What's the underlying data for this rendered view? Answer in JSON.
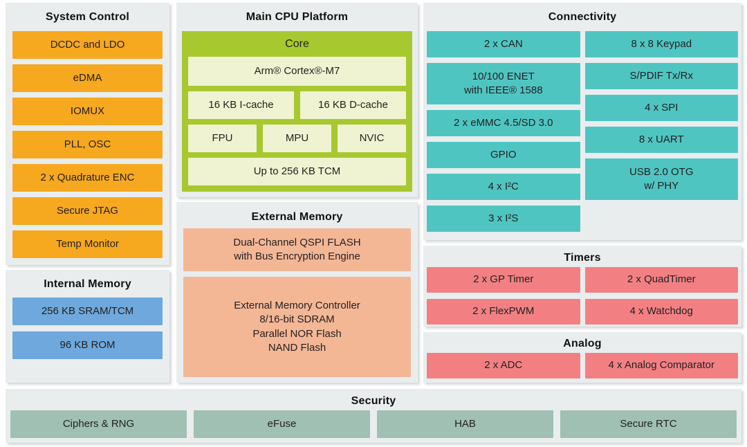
{
  "colors": {
    "panel_background": "#E9EDEE",
    "system_control_orange": "#F6A81F",
    "connectivity_teal": "#4FC5C2",
    "cpu_core_green": "#A8C830",
    "cpu_inner_light_green": "#EFF3D1",
    "internal_memory_blue": "#6FA8DC",
    "external_memory_salmon": "#F3B796",
    "timers_analog_pink": "#F28083",
    "security_sage": "#9FC0B3",
    "text": "#231F20"
  },
  "panels": {
    "system_control": {
      "title": "System Control",
      "blocks": [
        "DCDC and LDO",
        "eDMA",
        "IOMUX",
        "PLL, OSC",
        "2 x Quadrature ENC",
        "Secure JTAG",
        "Temp Monitor"
      ]
    },
    "internal_memory": {
      "title": "Internal Memory",
      "blocks": [
        "256 KB SRAM/TCM",
        "96 KB ROM"
      ]
    },
    "main_cpu": {
      "title": "Main CPU Platform",
      "core_label": "Core",
      "cpu": "Arm® Cortex®-M7",
      "icache": "16 KB I-cache",
      "dcache": "16 KB D-cache",
      "fpu": "FPU",
      "mpu": "MPU",
      "nvic": "NVIC",
      "tcm": "Up to 256 KB TCM"
    },
    "external_memory": {
      "title": "External Memory",
      "qspi": "Dual-Channel QSPI FLASH\nwith Bus Encryption Engine",
      "controller": "External Memory Controller\n8/16-bit SDRAM\nParallel NOR Flash\nNAND Flash"
    },
    "connectivity": {
      "title": "Connectivity",
      "left": [
        "2 x CAN",
        "10/100 ENET\nwith IEEE® 1588",
        "2 x eMMC 4.5/SD 3.0",
        "GPIO",
        "4 x I²C",
        "3 x I²S"
      ],
      "right": [
        "8 x 8 Keypad",
        "S/PDIF Tx/Rx",
        "4 x SPI",
        "8 x UART",
        "USB 2.0 OTG\nw/ PHY"
      ]
    },
    "timers": {
      "title": "Timers",
      "blocks": [
        "2 x GP Timer",
        "2 x QuadTimer",
        "2 x FlexPWM",
        "4 x Watchdog"
      ]
    },
    "analog": {
      "title": "Analog",
      "blocks": [
        "2 x ADC",
        "4 x Analog Comparator"
      ]
    },
    "security": {
      "title": "Security",
      "blocks": [
        "Ciphers & RNG",
        "eFuse",
        "HAB",
        "Secure RTC"
      ]
    }
  }
}
